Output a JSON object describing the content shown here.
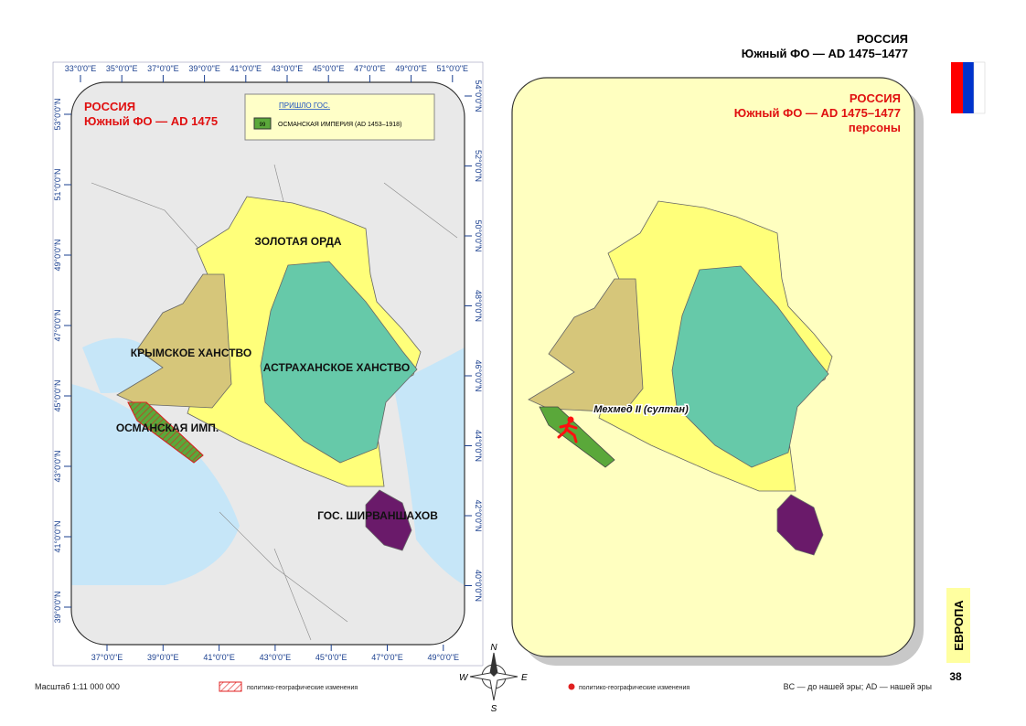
{
  "header": {
    "country": "РОССИЯ",
    "subtitle": "Южный ФО — AD 1475–1477"
  },
  "left_map": {
    "title": "РОССИЯ",
    "subtitle": "Южный ФО — AD 1475",
    "legend": {
      "title": "ПРИШЛО ГОС.",
      "swatch": "99",
      "item": "ОСМАНСКАЯ ИМПЕРИЯ (AD 1453–1918)"
    },
    "regions": [
      "ЗОЛОТАЯ ОРДА",
      "КРЫМСКОЕ ХАНСТВО",
      "АСТРАХАНСКОЕ ХАНСТВО",
      "ОСМАНСКАЯ ИМП.",
      "ГОС. ШИРВАНШАХОВ"
    ],
    "top_ticks": [
      "33°0'0\"E",
      "35°0'0\"E",
      "37°0'0\"E",
      "39°0'0\"E",
      "41°0'0\"E",
      "43°0'0\"E",
      "45°0'0\"E",
      "47°0'0\"E",
      "49°0'0\"E",
      "51°0'0\"E"
    ],
    "bottom_ticks": [
      "37°0'0\"E",
      "39°0'0\"E",
      "41°0'0\"E",
      "43°0'0\"E",
      "45°0'0\"E",
      "47°0'0\"E",
      "49°0'0\"E"
    ],
    "left_ticks": [
      "53°0'0\"N",
      "51°0'0\"N",
      "49°0'0\"N",
      "47°0'0\"N",
      "45°0'0\"N",
      "43°0'0\"N",
      "41°0'0\"N",
      "39°0'0\"N"
    ],
    "right_ticks": [
      "54°0'0\"N",
      "52°0'0\"N",
      "50°0'0\"N",
      "48°0'0\"N",
      "46°0'0\"N",
      "44°0'0\"N",
      "42°0'0\"N",
      "40°0'0\"N"
    ]
  },
  "right_map": {
    "title": "РОССИЯ",
    "subtitle": "Южный ФО — AD 1475–1477",
    "subtitle2": "персоны",
    "person": "Мехмед II (султан)"
  },
  "compass": {
    "n": "N",
    "e": "E",
    "s": "S",
    "w": "W"
  },
  "footer": {
    "scale": "Масштаб 1:11 000 000",
    "legend_hatched": "политико-географические изменения",
    "legend_dot": "политико-географические изменения",
    "note": "BC — до нашей эры; AD — нашей эры"
  },
  "side_tab": "ЕВРОПА",
  "page_number": "38"
}
